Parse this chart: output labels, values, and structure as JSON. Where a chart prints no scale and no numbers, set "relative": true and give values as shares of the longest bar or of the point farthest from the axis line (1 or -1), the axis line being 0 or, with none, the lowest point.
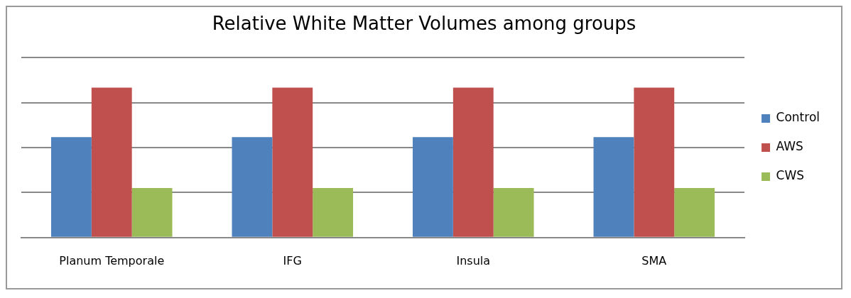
{
  "chart_data": {
    "type": "bar",
    "title": "Relative White Matter Volumes among groups",
    "categories": [
      "Planum Temporale",
      "IFG",
      "Insula",
      "SMA"
    ],
    "relative": true,
    "grid": "y",
    "legend": "right",
    "series": [
      {
        "name": "Control",
        "color": "#4f81bd",
        "values": [
          0.67,
          0.67,
          0.67,
          0.67
        ]
      },
      {
        "name": "AWS",
        "color": "#c0504d",
        "values": [
          1,
          1,
          1,
          1
        ]
      },
      {
        "name": "CWS",
        "color": "#9bbb59",
        "values": [
          0.33,
          0.33,
          0.33,
          0.33
        ]
      }
    ]
  }
}
